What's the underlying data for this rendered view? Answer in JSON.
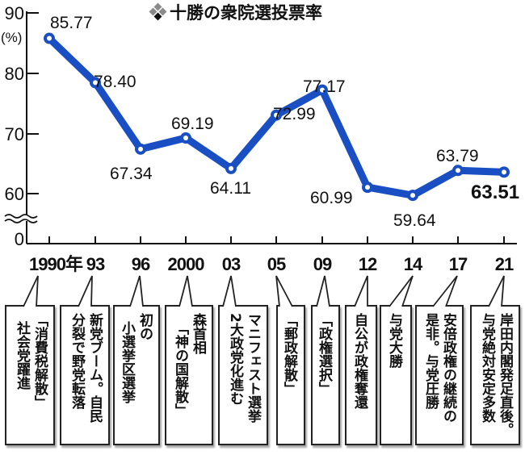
{
  "title": "十勝の衆院選投票率",
  "title_icon": "diamond-cluster-icon",
  "colors": {
    "line": "#1a4fc4",
    "text": "#111111",
    "icon_gray": "#8a8a8a",
    "icon_dark": "#111111"
  },
  "axis": {
    "y_unit": "(%)",
    "y_ticks": [
      "90",
      "80",
      "70",
      "60",
      "0"
    ],
    "x_ticks": [
      "1990年",
      "93",
      "96",
      "2000",
      "03",
      "05",
      "09",
      "12",
      "14",
      "17",
      "21"
    ],
    "axis_break": "wavy-break-icon"
  },
  "chart_data": {
    "type": "line",
    "title": "十勝の衆院選投票率",
    "xlabel": "",
    "ylabel": "(%)",
    "categories": [
      "1990",
      "1993",
      "1996",
      "2000",
      "2003",
      "2005",
      "2009",
      "2012",
      "2014",
      "2017",
      "2021"
    ],
    "series": [
      {
        "name": "十勝の衆院選投票率",
        "values": [
          85.77,
          78.4,
          67.34,
          69.19,
          64.11,
          72.99,
          77.17,
          60.99,
          59.64,
          63.79,
          63.51
        ]
      }
    ],
    "data_labels": [
      "85.77",
      "78.40",
      "67.34",
      "69.19",
      "64.11",
      "72.99",
      "77.17",
      "60.99",
      "59.64",
      "63.79",
      "63.51"
    ],
    "ylim": [
      0,
      90
    ],
    "y_ticks": [
      0,
      60,
      70,
      80,
      90
    ],
    "axis_break": "between 0 and 60",
    "grid": false,
    "legend": "none",
    "highlighted_point": {
      "category": "2021",
      "value": 63.51
    }
  },
  "callouts": [
    {
      "year": "1990",
      "lines": [
        "「消費税解散」",
        "社会党躍進"
      ]
    },
    {
      "year": "1993",
      "lines": [
        "新党ブーム。自民",
        "分裂で野党転落"
      ]
    },
    {
      "year": "1996",
      "lines": [
        "初の",
        "小選挙区選挙"
      ]
    },
    {
      "year": "2000",
      "lines": [
        "森首相",
        "「神の国解散」"
      ]
    },
    {
      "year": "2003",
      "lines": [
        "マニフェスト選挙",
        "2大政党化進む"
      ]
    },
    {
      "year": "2005",
      "lines": [
        "「郵政解散」"
      ]
    },
    {
      "year": "2009",
      "lines": [
        "「政権選択」"
      ]
    },
    {
      "year": "2012",
      "lines": [
        "自公が政権奪還"
      ]
    },
    {
      "year": "2014",
      "lines": [
        "与党大勝"
      ]
    },
    {
      "year": "2017",
      "lines": [
        "安倍政権の継続の",
        "是非。与党圧勝"
      ]
    },
    {
      "year": "2021",
      "lines": [
        "岸田内閣発足直後。",
        "与党絶対安定多数"
      ]
    }
  ]
}
